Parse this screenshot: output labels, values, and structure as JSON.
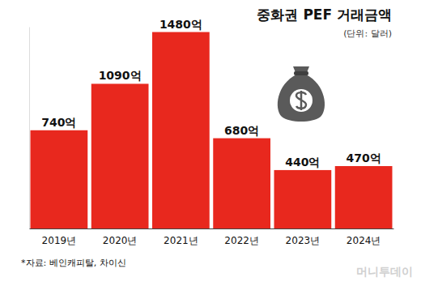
{
  "chart_data": {
    "type": "bar",
    "title": "중화권 PEF 거래금액",
    "subtitle": "(단위: 달러)",
    "categories": [
      "2019년",
      "2020년",
      "2021년",
      "2022년",
      "2023년",
      "2024년"
    ],
    "values": [
      740,
      1090,
      1480,
      680,
      440,
      470
    ],
    "value_labels": [
      "740억",
      "1090억",
      "1480억",
      "680억",
      "440억",
      "470억"
    ],
    "color": "#e8281e",
    "ylim": [
      0,
      1520
    ],
    "yticks": [],
    "grid": false,
    "data_labels": true,
    "tick_labels": "x",
    "source": "*자료: 베인캐피탈, 차이신",
    "watermark": "머니투데이"
  }
}
